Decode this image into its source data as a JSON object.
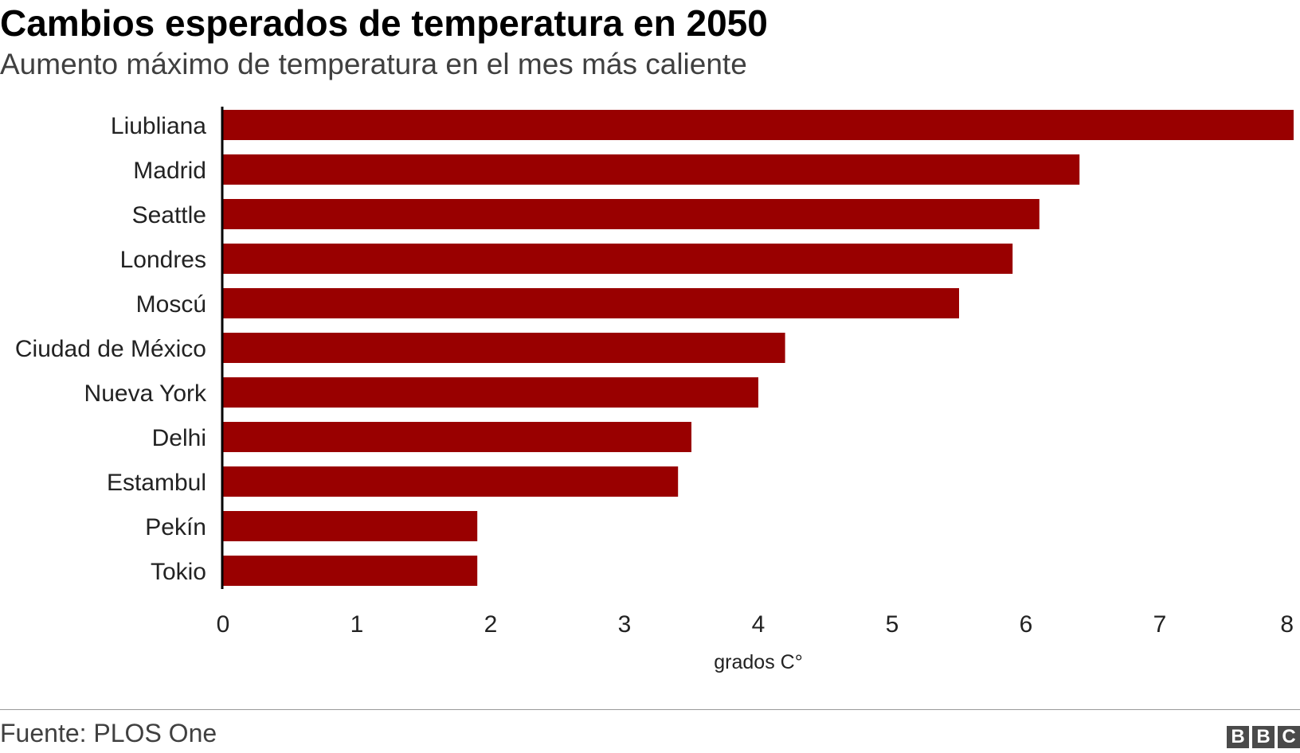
{
  "header": {
    "title": "Cambios esperados de temperatura en 2050",
    "subtitle": "Aumento máximo de temperatura en el mes más caliente"
  },
  "chart_data": {
    "type": "bar",
    "orientation": "horizontal",
    "categories": [
      "Liubliana",
      "Madrid",
      "Seattle",
      "Londres",
      "Moscú",
      "Ciudad de México",
      "Nueva York",
      "Delhi",
      "Estambul",
      "Pekín",
      "Tokio"
    ],
    "values": [
      8.0,
      6.4,
      6.1,
      5.9,
      5.5,
      4.2,
      4.0,
      3.5,
      3.4,
      1.9,
      1.9
    ],
    "xlabel": "grados C°",
    "xlim": [
      0,
      8
    ],
    "xticks": [
      "0",
      "1",
      "2",
      "3",
      "4",
      "5",
      "6",
      "7",
      "8"
    ],
    "grid": false,
    "bar_color": "#990000"
  },
  "footer": {
    "source": "Fuente: PLOS One",
    "logo_letters": [
      "B",
      "B",
      "C"
    ]
  }
}
